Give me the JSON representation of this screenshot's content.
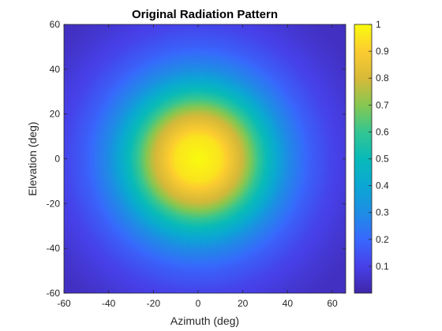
{
  "chart_data": {
    "type": "heatmap",
    "title": "Original Radiation Pattern",
    "xlabel": "Azimuth (deg)",
    "ylabel": "Elevation (deg)",
    "xlim": [
      -60,
      66
    ],
    "ylim": [
      -60,
      60
    ],
    "x_ticks": [
      -60,
      -40,
      -20,
      0,
      20,
      40,
      60
    ],
    "y_ticks": [
      -60,
      -40,
      -20,
      0,
      20,
      40,
      60
    ],
    "x_tick_labels": [
      "-60",
      "-40",
      "-20",
      "0",
      "20",
      "40",
      "60"
    ],
    "y_tick_labels": [
      "-60",
      "-40",
      "-20",
      "0",
      "20",
      "40",
      "60"
    ],
    "z_range": [
      0,
      1
    ],
    "peak": {
      "azimuth": 0,
      "elevation": 0,
      "value": 1
    },
    "radial_profile": {
      "offset_deg": [
        0,
        10,
        20,
        30,
        40,
        50,
        60,
        70,
        80
      ],
      "value": [
        1.0,
        0.95,
        0.78,
        0.52,
        0.3,
        0.18,
        0.11,
        0.07,
        0.04
      ]
    },
    "colormap": "parula",
    "colorbar": {
      "ticks": [
        0.1,
        0.2,
        0.3,
        0.4,
        0.5,
        0.6,
        0.7,
        0.8,
        0.9,
        1
      ],
      "tick_labels": [
        "0.1",
        "0.2",
        "0.3",
        "0.4",
        "0.5",
        "0.6",
        "0.7",
        "0.8",
        "0.9",
        "1"
      ],
      "location": "right"
    },
    "grid": false
  }
}
